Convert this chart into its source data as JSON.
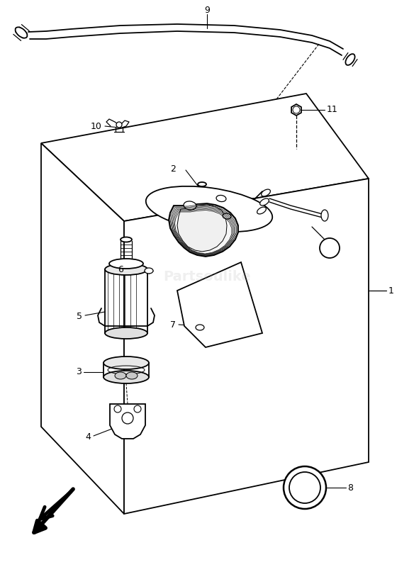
{
  "background_color": "#ffffff",
  "line_color": "#000000",
  "fig_width": 5.84,
  "fig_height": 8.0,
  "dpi": 100,
  "watermark_text": "Partsoulike",
  "watermark_alpha": 0.18,
  "watermark_color": "#aaaaaa"
}
